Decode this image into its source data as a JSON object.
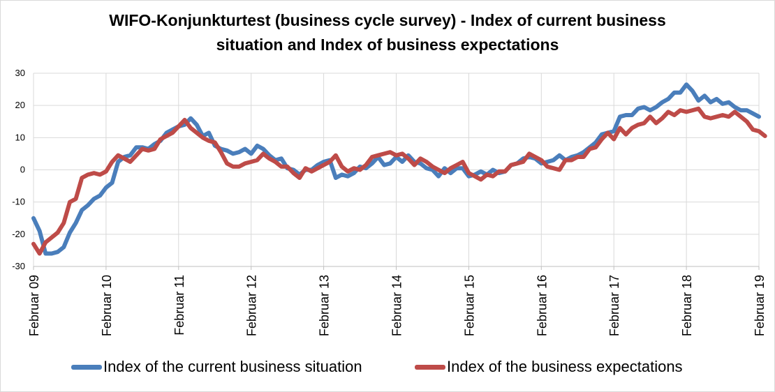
{
  "title_line1": "WIFO-Konjunkturtest (business cycle survey) - Index of current business",
  "title_line2": "situation and Index of business expectations",
  "colors": {
    "situation": "#4a7ebb",
    "expectations": "#be4b48",
    "grid": "#d9d9d9",
    "axis": "#bfbfbf"
  },
  "chart_data": {
    "type": "line",
    "title": "WIFO-Konjunkturtest (business cycle survey) - Index of current business situation and Index of business expectations",
    "ylim": [
      -30,
      30
    ],
    "yticks": [
      -30,
      -20,
      -10,
      0,
      10,
      20,
      30
    ],
    "xrange": [
      "2009-02",
      "2019-02"
    ],
    "x_tick_labels": [
      "Februar 09",
      "Februar 10",
      "Februar 11",
      "Februar 12",
      "Februar 13",
      "Februar 14",
      "Februar 15",
      "Februar 16",
      "Februar 17",
      "Februar 18",
      "Februar 19"
    ],
    "grid": true,
    "legend_position": "bottom",
    "series": [
      {
        "name": "Index of the current business situation",
        "color": "#4a7ebb",
        "points": [
          [
            "2009-02",
            -15.0
          ],
          [
            "2009-03",
            -19.0
          ],
          [
            "2009-04",
            -26.0
          ],
          [
            "2009-05",
            -26.0
          ],
          [
            "2009-06",
            -25.5
          ],
          [
            "2009-07",
            -24.0
          ],
          [
            "2009-08",
            -19.5
          ],
          [
            "2009-09",
            -16.5
          ],
          [
            "2009-10",
            -12.5
          ],
          [
            "2009-11",
            -11.0
          ],
          [
            "2009-12",
            -9.0
          ],
          [
            "2010-01",
            -8.0
          ],
          [
            "2010-02",
            -5.5
          ],
          [
            "2010-03",
            -4.0
          ],
          [
            "2010-04",
            2.5
          ],
          [
            "2010-05",
            4.0
          ],
          [
            "2010-06",
            4.5
          ],
          [
            "2010-07",
            7.0
          ],
          [
            "2010-08",
            7.0
          ],
          [
            "2010-09",
            6.5
          ],
          [
            "2010-10",
            8.0
          ],
          [
            "2010-11",
            9.0
          ],
          [
            "2010-12",
            11.5
          ],
          [
            "2011-01",
            12.5
          ],
          [
            "2011-02",
            13.5
          ],
          [
            "2011-03",
            14.0
          ],
          [
            "2011-04",
            16.0
          ],
          [
            "2011-05",
            14.0
          ],
          [
            "2011-06",
            10.5
          ],
          [
            "2011-07",
            11.5
          ],
          [
            "2011-08",
            7.5
          ],
          [
            "2011-09",
            6.5
          ],
          [
            "2011-10",
            6.0
          ],
          [
            "2011-11",
            5.0
          ],
          [
            "2011-12",
            5.5
          ],
          [
            "2012-01",
            6.5
          ],
          [
            "2012-02",
            5.0
          ],
          [
            "2012-03",
            7.5
          ],
          [
            "2012-04",
            6.5
          ],
          [
            "2012-05",
            4.5
          ],
          [
            "2012-06",
            3.0
          ],
          [
            "2012-07",
            3.5
          ],
          [
            "2012-08",
            0.5
          ],
          [
            "2012-09",
            0.0
          ],
          [
            "2012-10",
            -1.5
          ],
          [
            "2012-11",
            0.0
          ],
          [
            "2012-12",
            0.0
          ],
          [
            "2013-01",
            1.5
          ],
          [
            "2013-02",
            2.5
          ],
          [
            "2013-03",
            3.0
          ],
          [
            "2013-04",
            -2.5
          ],
          [
            "2013-05",
            -1.5
          ],
          [
            "2013-06",
            -2.0
          ],
          [
            "2013-07",
            -1.0
          ],
          [
            "2013-08",
            1.0
          ],
          [
            "2013-09",
            0.5
          ],
          [
            "2013-10",
            2.0
          ],
          [
            "2013-11",
            4.0
          ],
          [
            "2013-12",
            1.5
          ],
          [
            "2014-01",
            2.0
          ],
          [
            "2014-02",
            4.0
          ],
          [
            "2014-03",
            2.5
          ],
          [
            "2014-04",
            4.5
          ],
          [
            "2014-05",
            2.5
          ],
          [
            "2014-06",
            2.0
          ],
          [
            "2014-07",
            0.5
          ],
          [
            "2014-08",
            0.0
          ],
          [
            "2014-09",
            -2.0
          ],
          [
            "2014-10",
            0.5
          ],
          [
            "2014-11",
            -1.0
          ],
          [
            "2014-12",
            0.5
          ],
          [
            "2015-01",
            0.5
          ],
          [
            "2015-02",
            -2.0
          ],
          [
            "2015-03",
            -1.5
          ],
          [
            "2015-04",
            -0.5
          ],
          [
            "2015-05",
            -1.5
          ],
          [
            "2015-06",
            0.0
          ],
          [
            "2015-07",
            -1.0
          ],
          [
            "2015-08",
            -0.5
          ],
          [
            "2015-09",
            1.5
          ],
          [
            "2015-10",
            2.0
          ],
          [
            "2015-11",
            3.5
          ],
          [
            "2015-12",
            4.0
          ],
          [
            "2016-01",
            3.5
          ],
          [
            "2016-02",
            2.0
          ],
          [
            "2016-03",
            2.5
          ],
          [
            "2016-04",
            3.0
          ],
          [
            "2016-05",
            4.5
          ],
          [
            "2016-06",
            3.0
          ],
          [
            "2016-07",
            4.0
          ],
          [
            "2016-08",
            4.5
          ],
          [
            "2016-09",
            5.5
          ],
          [
            "2016-10",
            7.0
          ],
          [
            "2016-11",
            8.5
          ],
          [
            "2016-12",
            11.0
          ],
          [
            "2017-01",
            11.5
          ],
          [
            "2017-02",
            12.0
          ],
          [
            "2017-03",
            16.5
          ],
          [
            "2017-04",
            17.0
          ],
          [
            "2017-05",
            17.0
          ],
          [
            "2017-06",
            19.0
          ],
          [
            "2017-07",
            19.5
          ],
          [
            "2017-08",
            18.5
          ],
          [
            "2017-09",
            19.5
          ],
          [
            "2017-10",
            21.0
          ],
          [
            "2017-11",
            22.0
          ],
          [
            "2017-12",
            24.0
          ],
          [
            "2018-01",
            24.0
          ],
          [
            "2018-02",
            26.5
          ],
          [
            "2018-03",
            24.5
          ],
          [
            "2018-04",
            21.5
          ],
          [
            "2018-05",
            23.0
          ],
          [
            "2018-06",
            21.0
          ],
          [
            "2018-07",
            22.0
          ],
          [
            "2018-08",
            20.5
          ],
          [
            "2018-09",
            21.0
          ],
          [
            "2018-10",
            19.5
          ],
          [
            "2018-11",
            18.5
          ],
          [
            "2018-12",
            18.5
          ],
          [
            "2019-01",
            17.5
          ],
          [
            "2019-02",
            16.5
          ]
        ]
      },
      {
        "name": "Index of the business expectations",
        "color": "#be4b48",
        "points": [
          [
            "2009-02",
            -23.0
          ],
          [
            "2009-03",
            -26.0
          ],
          [
            "2009-04",
            -22.5
          ],
          [
            "2009-05",
            -21.0
          ],
          [
            "2009-06",
            -19.5
          ],
          [
            "2009-07",
            -16.5
          ],
          [
            "2009-08",
            -10.0
          ],
          [
            "2009-09",
            -9.0
          ],
          [
            "2009-10",
            -2.5
          ],
          [
            "2009-11",
            -1.5
          ],
          [
            "2009-12",
            -1.0
          ],
          [
            "2010-01",
            -1.5
          ],
          [
            "2010-02",
            -0.5
          ],
          [
            "2010-03",
            2.5
          ],
          [
            "2010-04",
            4.5
          ],
          [
            "2010-05",
            3.5
          ],
          [
            "2010-06",
            2.5
          ],
          [
            "2010-07",
            4.5
          ],
          [
            "2010-08",
            6.5
          ],
          [
            "2010-09",
            6.0
          ],
          [
            "2010-10",
            6.5
          ],
          [
            "2010-11",
            9.5
          ],
          [
            "2010-12",
            10.5
          ],
          [
            "2011-01",
            11.5
          ],
          [
            "2011-02",
            13.5
          ],
          [
            "2011-03",
            15.5
          ],
          [
            "2011-04",
            13.0
          ],
          [
            "2011-05",
            11.5
          ],
          [
            "2011-06",
            10.0
          ],
          [
            "2011-07",
            9.0
          ],
          [
            "2011-08",
            8.5
          ],
          [
            "2011-09",
            5.5
          ],
          [
            "2011-10",
            2.0
          ],
          [
            "2011-11",
            1.0
          ],
          [
            "2011-12",
            1.0
          ],
          [
            "2012-01",
            2.0
          ],
          [
            "2012-02",
            2.5
          ],
          [
            "2012-03",
            3.0
          ],
          [
            "2012-04",
            5.0
          ],
          [
            "2012-05",
            3.5
          ],
          [
            "2012-06",
            2.5
          ],
          [
            "2012-07",
            1.0
          ],
          [
            "2012-08",
            1.0
          ],
          [
            "2012-09",
            -1.0
          ],
          [
            "2012-10",
            -2.5
          ],
          [
            "2012-11",
            0.5
          ],
          [
            "2012-12",
            -0.5
          ],
          [
            "2013-01",
            0.5
          ],
          [
            "2013-02",
            1.5
          ],
          [
            "2013-03",
            2.5
          ],
          [
            "2013-04",
            4.5
          ],
          [
            "2013-05",
            1.0
          ],
          [
            "2013-06",
            -0.5
          ],
          [
            "2013-07",
            0.5
          ],
          [
            "2013-08",
            0.0
          ],
          [
            "2013-09",
            1.5
          ],
          [
            "2013-10",
            4.0
          ],
          [
            "2013-11",
            4.5
          ],
          [
            "2013-12",
            5.0
          ],
          [
            "2014-01",
            5.5
          ],
          [
            "2014-02",
            4.5
          ],
          [
            "2014-03",
            5.0
          ],
          [
            "2014-04",
            3.5
          ],
          [
            "2014-05",
            1.5
          ],
          [
            "2014-06",
            3.5
          ],
          [
            "2014-07",
            2.5
          ],
          [
            "2014-08",
            1.0
          ],
          [
            "2014-09",
            0.0
          ],
          [
            "2014-10",
            -1.0
          ],
          [
            "2014-11",
            0.5
          ],
          [
            "2014-12",
            1.5
          ],
          [
            "2015-01",
            2.5
          ],
          [
            "2015-02",
            -1.0
          ],
          [
            "2015-03",
            -2.0
          ],
          [
            "2015-04",
            -3.0
          ],
          [
            "2015-05",
            -1.5
          ],
          [
            "2015-06",
            -2.0
          ],
          [
            "2015-07",
            -0.5
          ],
          [
            "2015-08",
            -0.5
          ],
          [
            "2015-09",
            1.5
          ],
          [
            "2015-10",
            2.0
          ],
          [
            "2015-11",
            2.5
          ],
          [
            "2015-12",
            5.0
          ],
          [
            "2016-01",
            4.0
          ],
          [
            "2016-02",
            3.0
          ],
          [
            "2016-03",
            1.0
          ],
          [
            "2016-04",
            0.5
          ],
          [
            "2016-05",
            0.0
          ],
          [
            "2016-06",
            3.0
          ],
          [
            "2016-07",
            3.0
          ],
          [
            "2016-08",
            4.0
          ],
          [
            "2016-09",
            4.0
          ],
          [
            "2016-10",
            6.5
          ],
          [
            "2016-11",
            7.0
          ],
          [
            "2016-12",
            9.5
          ],
          [
            "2017-01",
            11.5
          ],
          [
            "2017-02",
            9.5
          ],
          [
            "2017-03",
            13.0
          ],
          [
            "2017-04",
            11.0
          ],
          [
            "2017-05",
            13.0
          ],
          [
            "2017-06",
            14.0
          ],
          [
            "2017-07",
            14.5
          ],
          [
            "2017-08",
            16.5
          ],
          [
            "2017-09",
            14.5
          ],
          [
            "2017-10",
            16.0
          ],
          [
            "2017-11",
            18.0
          ],
          [
            "2017-12",
            17.0
          ],
          [
            "2018-01",
            18.5
          ],
          [
            "2018-02",
            18.0
          ],
          [
            "2018-03",
            18.5
          ],
          [
            "2018-04",
            19.0
          ],
          [
            "2018-05",
            16.5
          ],
          [
            "2018-06",
            16.0
          ],
          [
            "2018-07",
            16.5
          ],
          [
            "2018-08",
            17.0
          ],
          [
            "2018-09",
            16.5
          ],
          [
            "2018-10",
            18.0
          ],
          [
            "2018-11",
            16.5
          ],
          [
            "2018-12",
            15.0
          ],
          [
            "2019-01",
            12.5
          ],
          [
            "2019-02",
            12.0
          ],
          [
            "2019-03",
            10.5
          ]
        ]
      }
    ]
  },
  "legend": [
    {
      "label": "Index of the current business situation"
    },
    {
      "label": "Index of the business expectations"
    }
  ]
}
